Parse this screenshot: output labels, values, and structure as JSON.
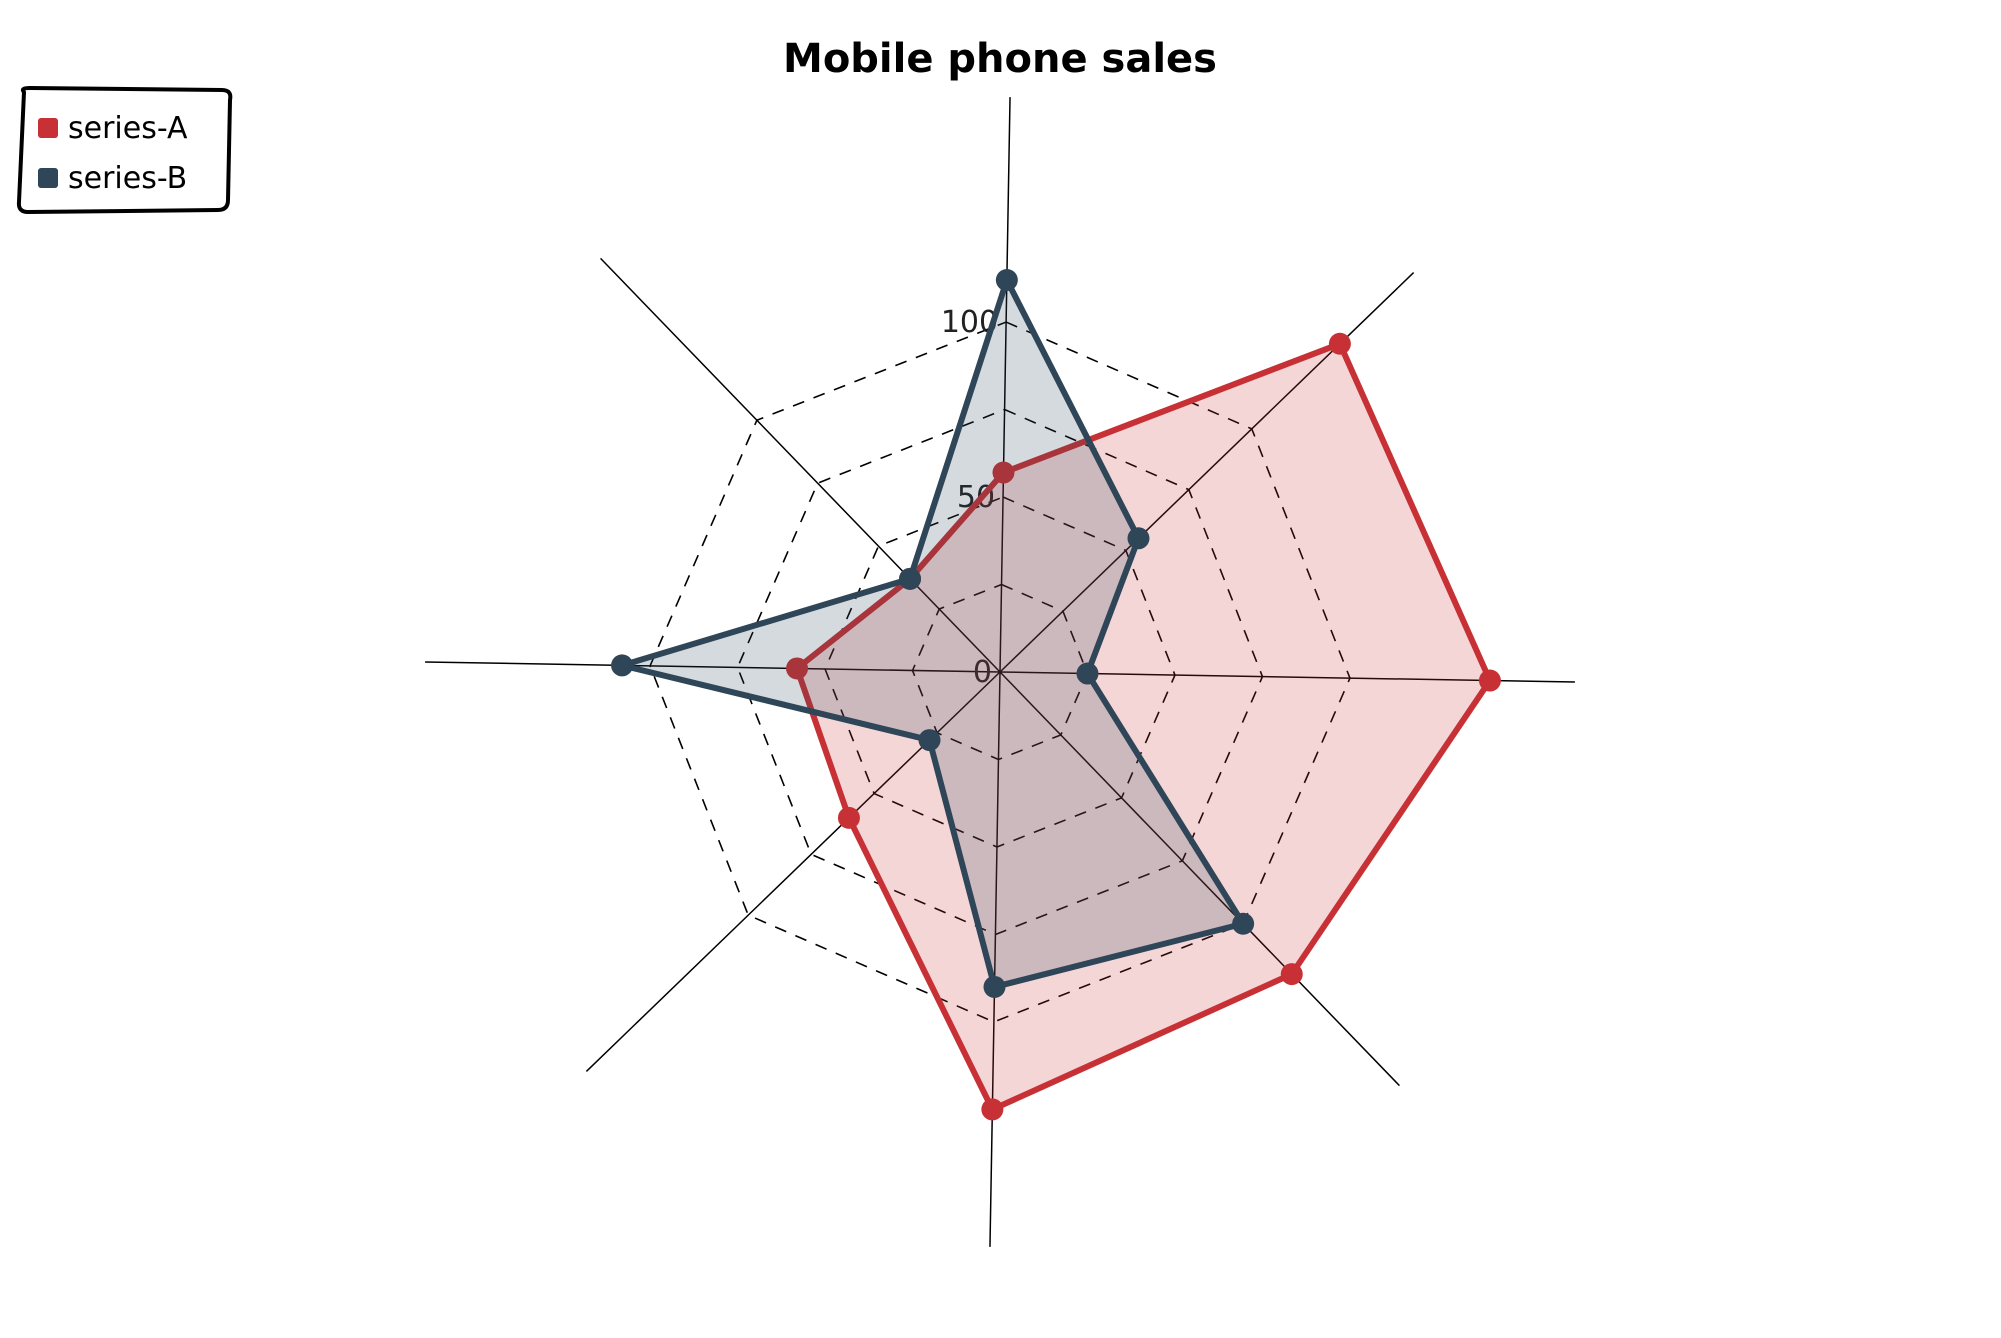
{
  "chart_data": {
    "type": "radar",
    "title": "Mobile phone sales",
    "legend_position": "top-left",
    "radial_ticks": [
      "0",
      "50",
      "100"
    ],
    "radial_range": [
      0,
      125
    ],
    "axes_count": 8,
    "series": [
      {
        "name": "series-A",
        "color": "#c73135",
        "values": [
          57,
          135,
          140,
          120,
          125,
          60,
          58,
          37
        ]
      },
      {
        "name": "series-B",
        "color": "#2f4658",
        "values": [
          112,
          55,
          25,
          100,
          90,
          28,
          108,
          37
        ]
      }
    ],
    "grid": {
      "style": "dashed",
      "axis_lines": "solid"
    }
  }
}
